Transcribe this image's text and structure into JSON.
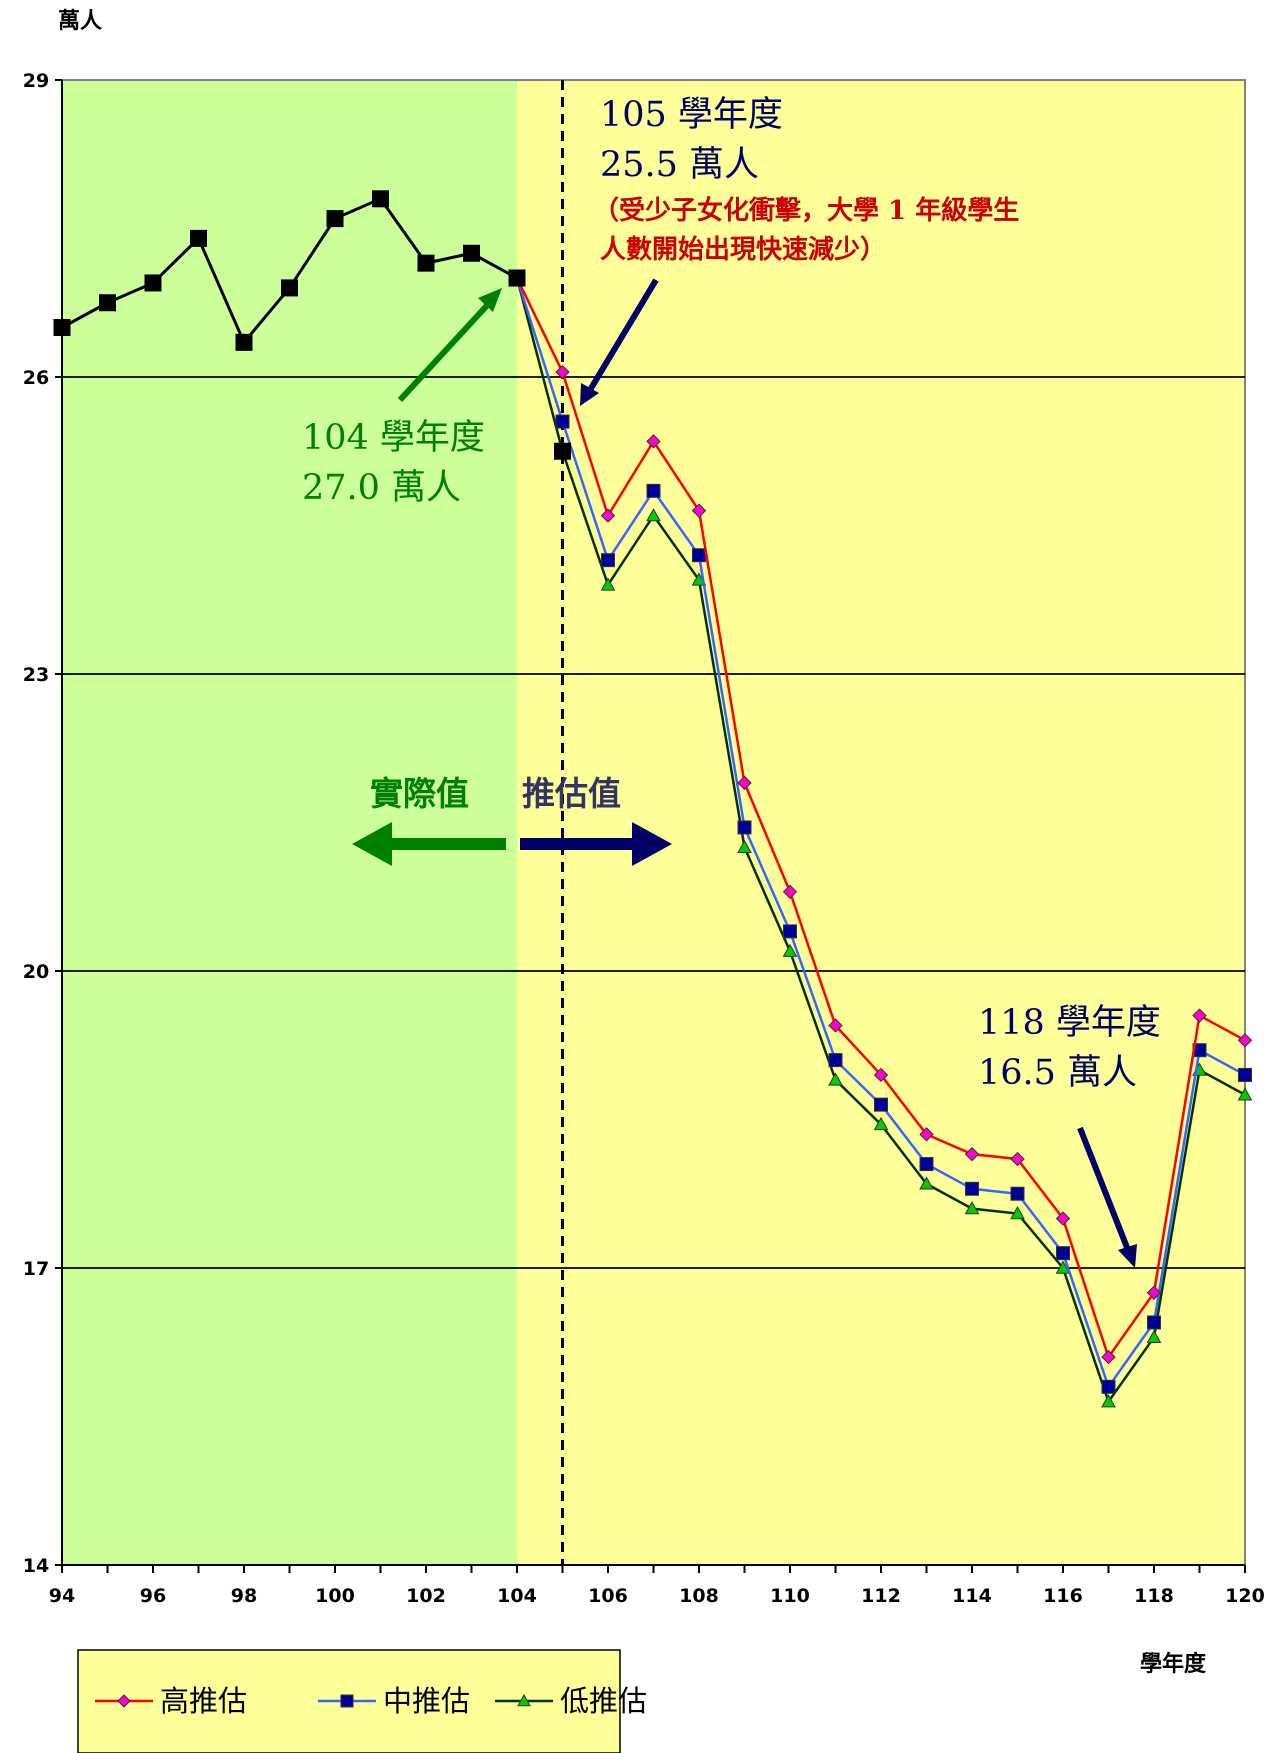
{
  "chart_data": {
    "type": "line",
    "y_unit_label": "萬人",
    "xlabel": "學年度",
    "ylim": [
      14,
      29
    ],
    "yticks": [
      14,
      17,
      20,
      23,
      26,
      29
    ],
    "xlim": [
      94,
      120
    ],
    "xticks": [
      94,
      96,
      98,
      100,
      102,
      104,
      106,
      108,
      110,
      112,
      114,
      116,
      118,
      120
    ],
    "grid": "horizontal",
    "regions": [
      {
        "label": "實際值",
        "from": 94,
        "to": 104,
        "color": "#ccff99"
      },
      {
        "label": "推估值",
        "from": 104,
        "to": 120,
        "color": "#ffff99"
      }
    ],
    "divider_x": 105,
    "series": [
      {
        "name": "",
        "role": "actual",
        "color": "#000000",
        "marker": "square",
        "x": [
          94,
          95,
          96,
          97,
          98,
          99,
          100,
          101,
          102,
          103,
          104
        ],
        "values": [
          26.5,
          26.75,
          26.95,
          27.4,
          26.35,
          26.9,
          27.6,
          27.8,
          27.15,
          27.25,
          27.0
        ]
      },
      {
        "name": "高推估",
        "color": "#ff0000",
        "marker": "diamond",
        "marker_color": "#ff00cc",
        "x": [
          104,
          105,
          106,
          107,
          108,
          109,
          110,
          111,
          112,
          113,
          114,
          115,
          116,
          117,
          118,
          119,
          120
        ],
        "values": [
          27.0,
          26.05,
          24.6,
          25.35,
          24.65,
          21.9,
          20.8,
          19.45,
          18.95,
          18.35,
          18.15,
          18.1,
          17.5,
          16.1,
          16.75,
          19.55,
          19.3
        ]
      },
      {
        "name": "中推估",
        "color": "#3366ff",
        "marker": "square",
        "marker_color": "#000099",
        "x": [
          104,
          105,
          106,
          107,
          108,
          109,
          110,
          111,
          112,
          113,
          114,
          115,
          116,
          117,
          118,
          119,
          120
        ],
        "values": [
          27.0,
          25.55,
          24.15,
          24.85,
          24.2,
          21.45,
          20.4,
          19.1,
          18.65,
          18.05,
          17.8,
          17.75,
          17.15,
          15.8,
          16.45,
          19.2,
          18.95
        ]
      },
      {
        "name": "低推估",
        "color": "#003300",
        "marker": "triangle",
        "marker_color": "#00cc00",
        "x": [
          104,
          105,
          106,
          107,
          108,
          109,
          110,
          111,
          112,
          113,
          114,
          115,
          116,
          117,
          118,
          119,
          120
        ],
        "values": [
          27.0,
          25.25,
          23.9,
          24.6,
          23.95,
          21.25,
          20.2,
          18.9,
          18.45,
          17.85,
          17.6,
          17.55,
          17.0,
          15.65,
          16.3,
          19.0,
          18.75
        ]
      }
    ],
    "annotations": [
      {
        "lines": [
          "105 學年度",
          "25.5 萬人"
        ],
        "color": "#000066"
      },
      {
        "lines": [
          "（受少子女化衝擊，大學 1 年級學生",
          "人數開始出現快速減少）"
        ],
        "color": "#cc0000"
      },
      {
        "lines": [
          "104 學年度",
          "27.0 萬人"
        ],
        "color": "#008000"
      },
      {
        "lines": [
          "118 學年度",
          "16.5 萬人"
        ],
        "color": "#000066"
      }
    ],
    "arrow_labels": {
      "actual": "實際值",
      "projected": "推估值"
    }
  }
}
